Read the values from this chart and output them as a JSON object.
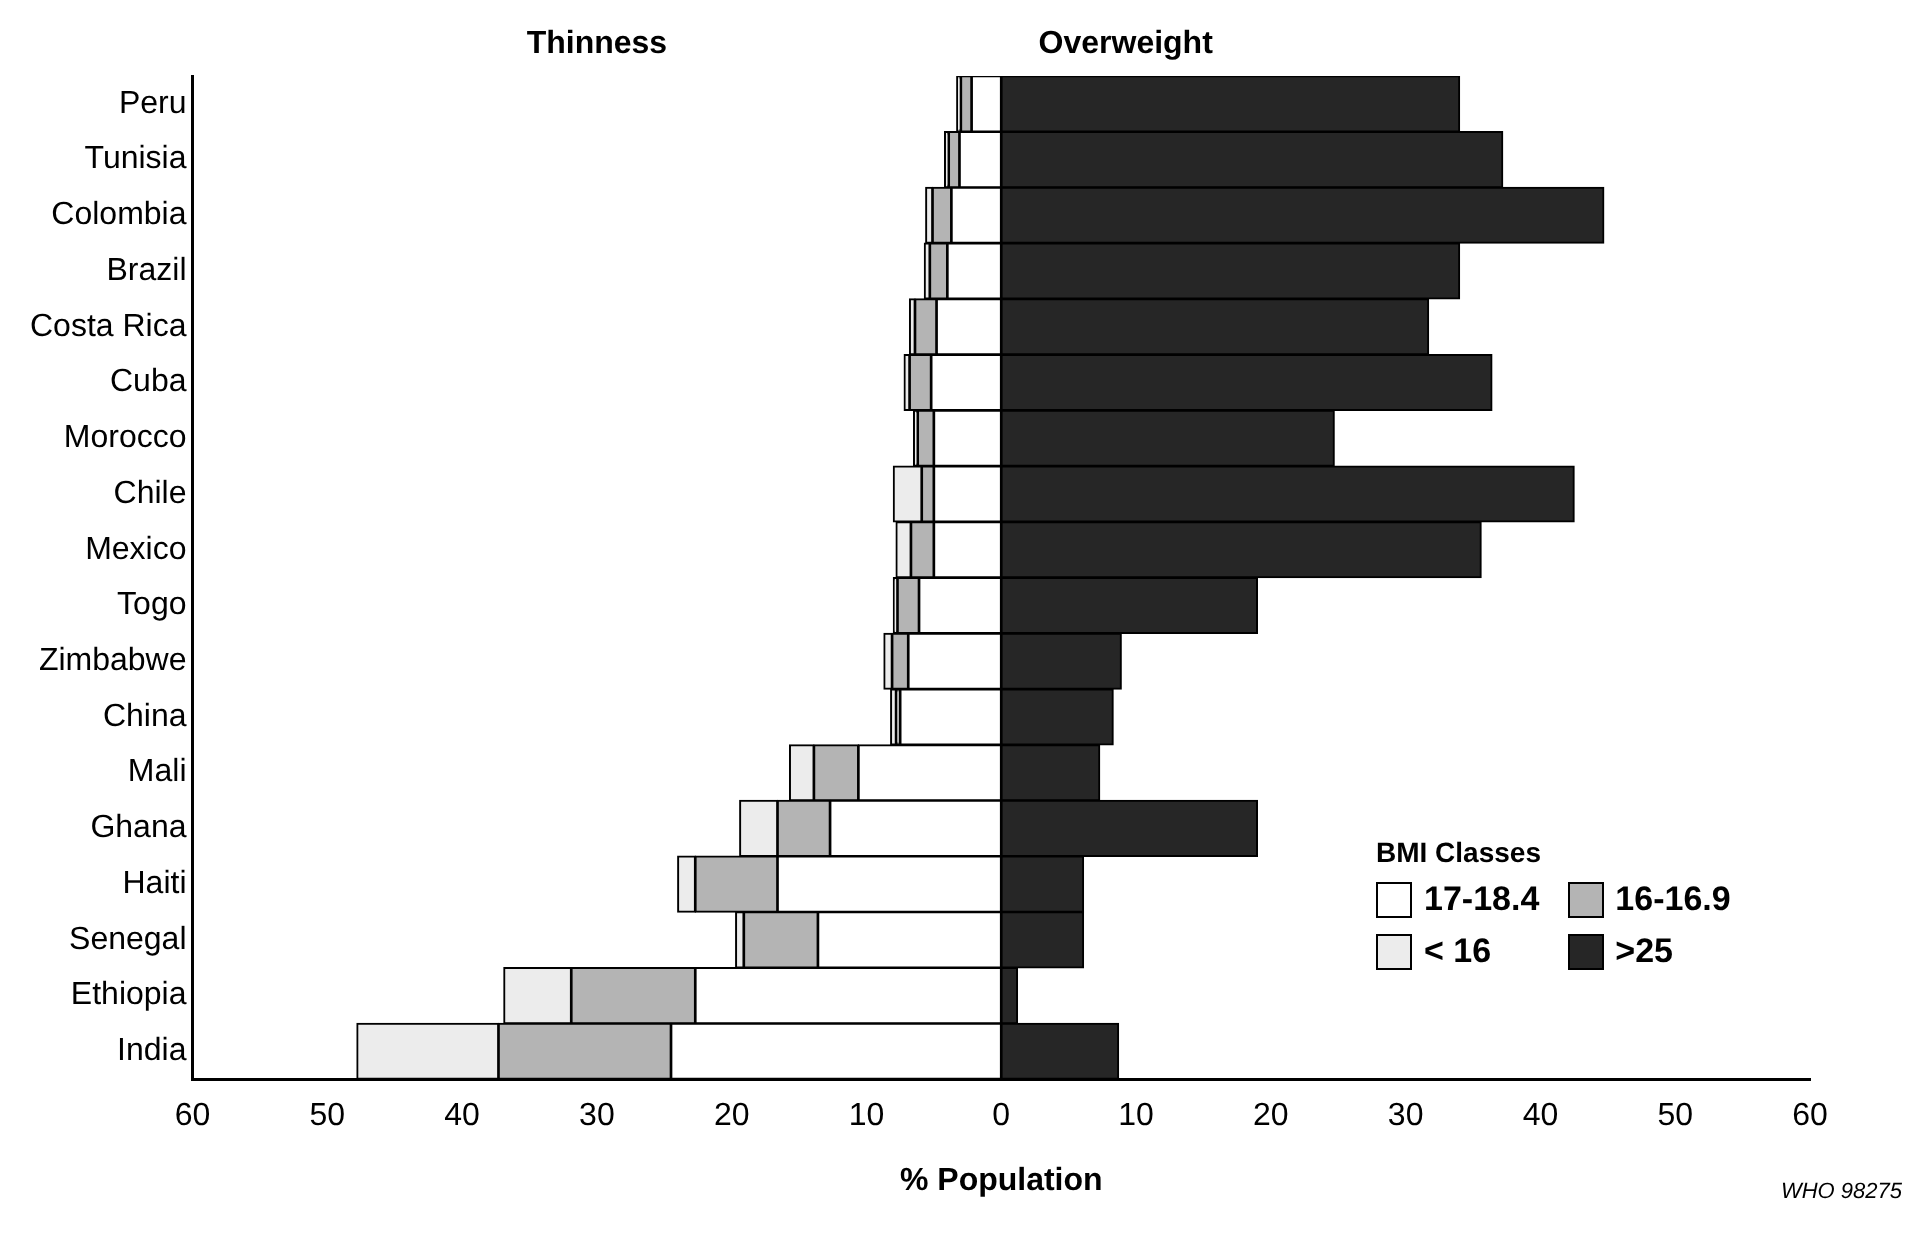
{
  "chart_data": {
    "type": "bar",
    "orientation": "horizontal",
    "stacked": true,
    "annotations": [
      "Thinness",
      "Overweight",
      "WHO 98275"
    ],
    "xlabel": "% Population",
    "legend_title": "BMI Classes",
    "legend": "bottom right",
    "categories": [
      "Peru",
      "Tunisia",
      "Colombia",
      "Brazil",
      "Costa Rica",
      "Cuba",
      "Morocco",
      "Chile",
      "Mexico",
      "Togo",
      "Zimbabwe",
      "China",
      "Mali",
      "Ghana",
      "Haiti",
      "Senegal",
      "Ethiopia",
      "India"
    ],
    "series": [
      {
        "name": "17-18.4",
        "color": "#ffffff",
        "values": [
          -2.2,
          -3.1,
          -3.7,
          -4,
          -4.8,
          -5.2,
          -5,
          -5,
          -5,
          -6.1,
          -6.9,
          -7.5,
          -10.6,
          -12.7,
          -16.6,
          -13.6,
          -22.7,
          -24.5
        ]
      },
      {
        "name": "16-16.9",
        "color": "#b4b4b4",
        "values": [
          -0.8,
          -0.8,
          -1.4,
          -1.3,
          -1.6,
          -1.6,
          -1.2,
          -0.9,
          -1.7,
          -1.6,
          -1.2,
          -0.3,
          -3.3,
          -3.9,
          -6.1,
          -5.5,
          -9.2,
          -12.8
        ]
      },
      {
        "name": "< 16",
        "color": "#ececec",
        "values": [
          -0.3,
          -0.3,
          -0.5,
          -0.4,
          -0.4,
          -0.4,
          -0.3,
          -2.1,
          -1.1,
          -0.3,
          -0.6,
          -0.4,
          -1.8,
          -2.8,
          -1.3,
          -0.6,
          -5,
          -10.5
        ]
      },
      {
        "name": ">25",
        "color": "#262626",
        "values": [
          34,
          37.2,
          44.7,
          34,
          31.7,
          36.4,
          24.7,
          42.5,
          35.6,
          19,
          8.9,
          8.3,
          7.3,
          19,
          6.1,
          6.1,
          1.2,
          8.7
        ]
      }
    ],
    "xlim": [
      -60,
      60
    ],
    "xticks": [
      {
        "value": -60,
        "label": "60"
      },
      {
        "value": -50,
        "label": "50"
      },
      {
        "value": -40,
        "label": "40"
      },
      {
        "value": -30,
        "label": "30"
      },
      {
        "value": -20,
        "label": "20"
      },
      {
        "value": -10,
        "label": "10"
      },
      0,
      10,
      20,
      30,
      40,
      50,
      60
    ],
    "grid": false
  }
}
